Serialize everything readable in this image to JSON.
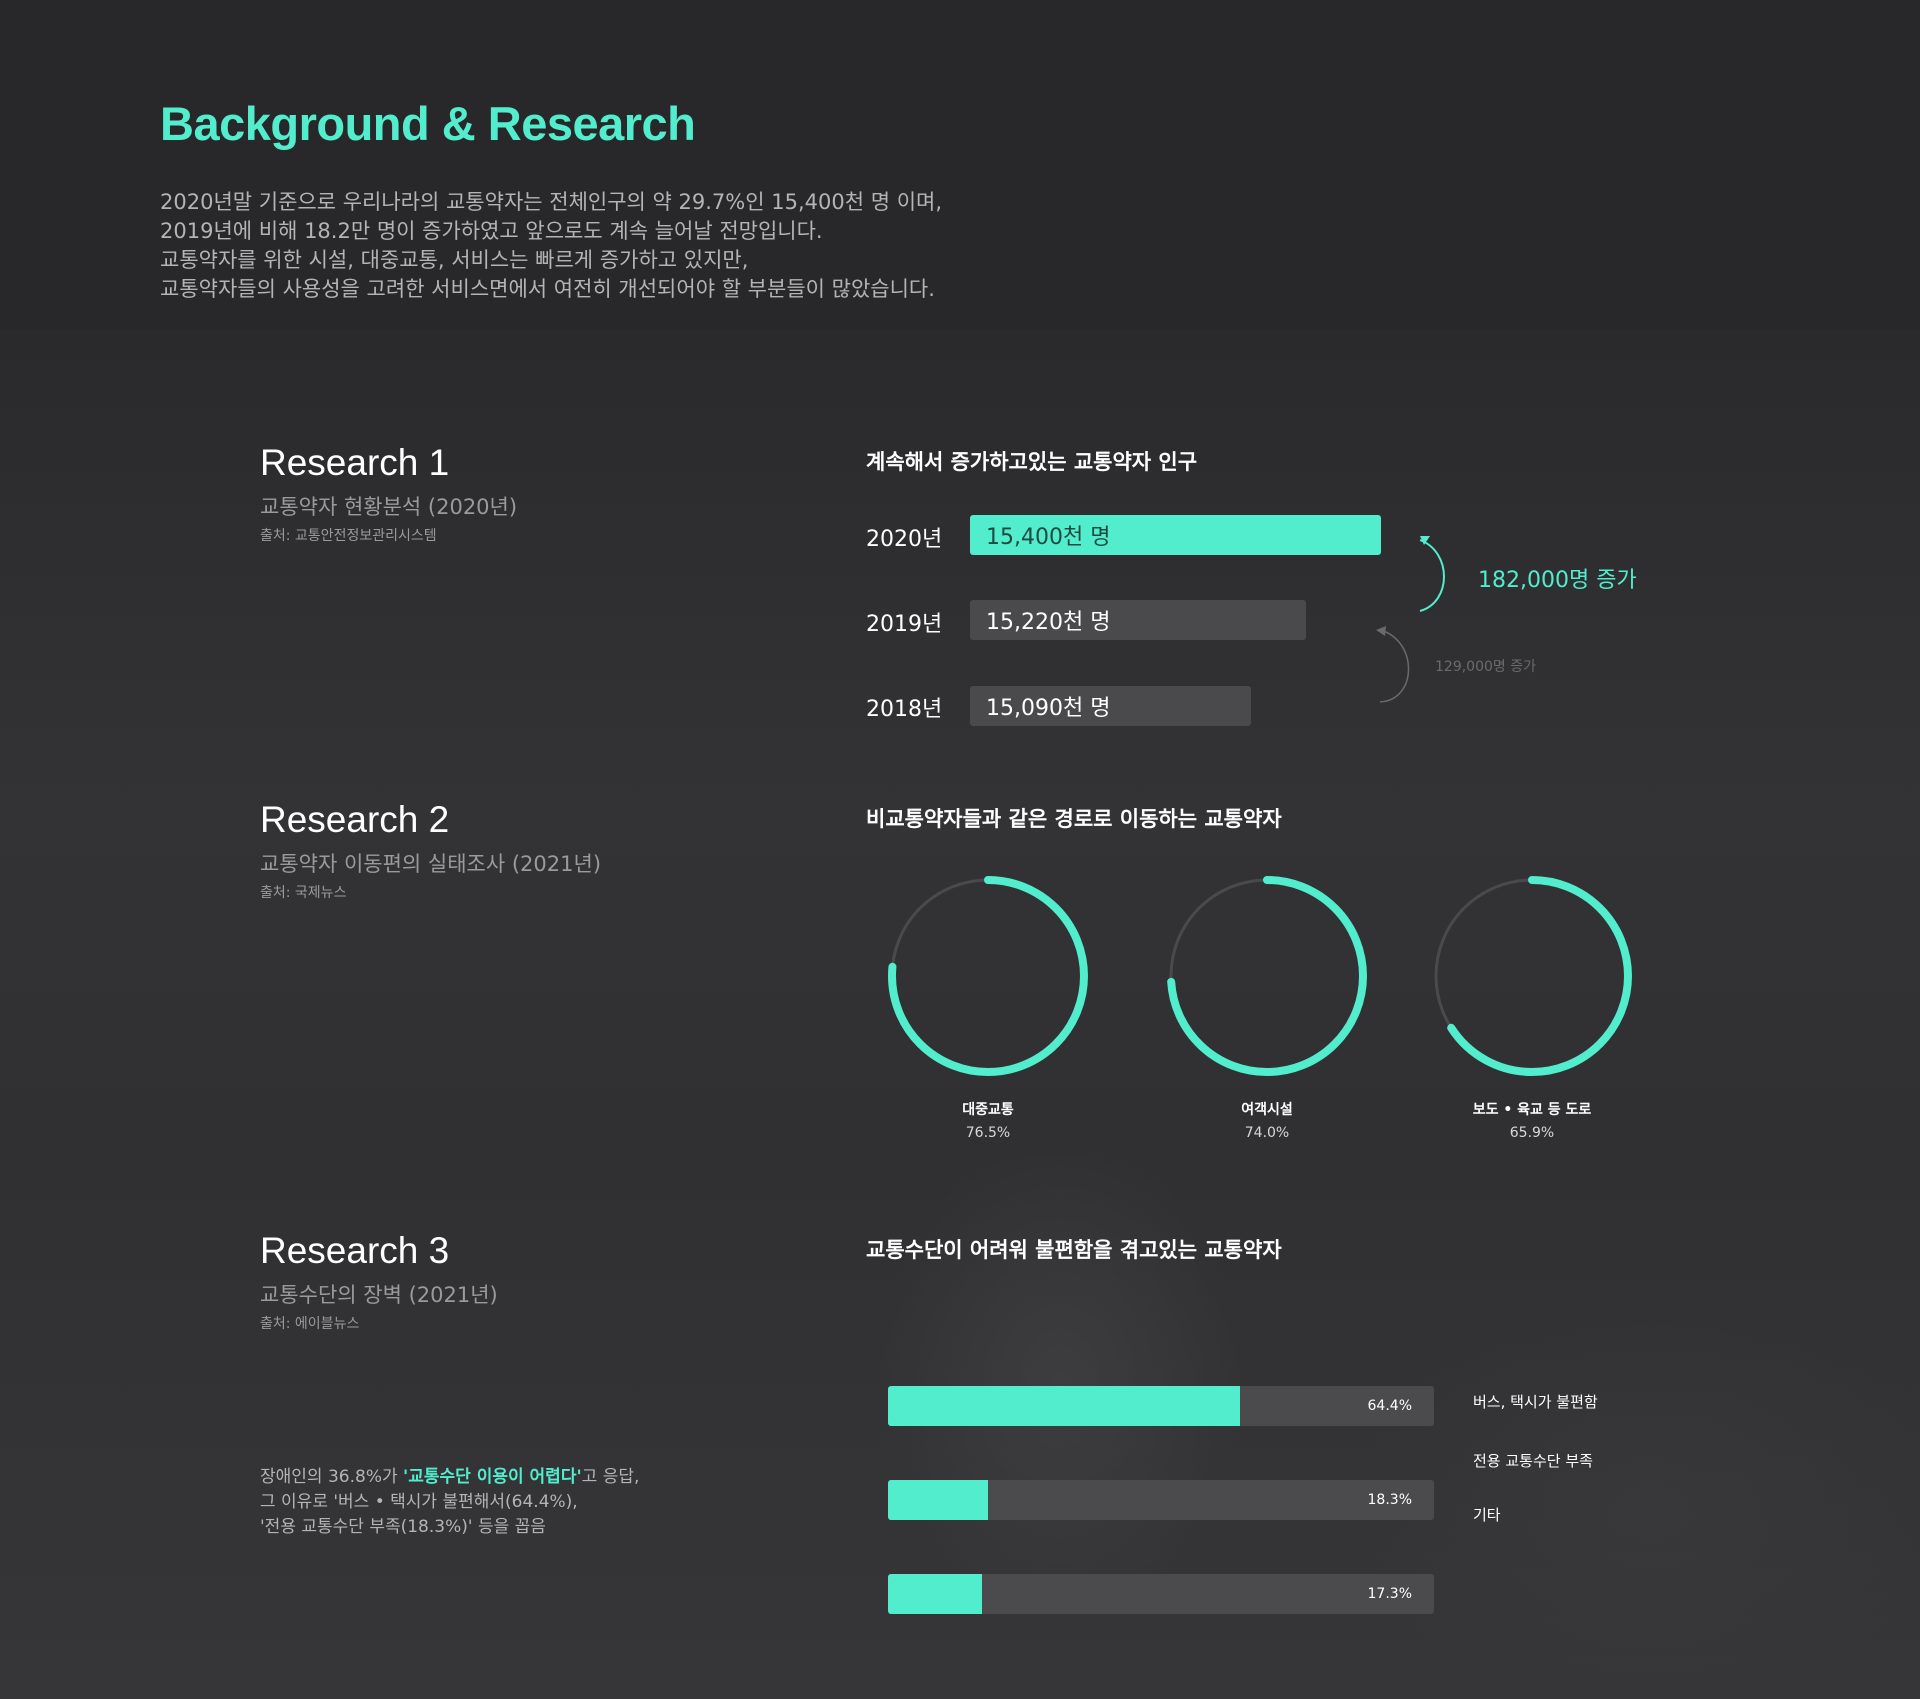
{
  "header": {
    "title": "Background & Research",
    "intro": [
      "2020년말 기준으로 우리나라의 교통약자는 전체인구의 약 29.7%인 15,400천 명 이며,",
      "2019년에 비해 18.2만 명이 증가하였고 앞으로도 계속 늘어날 전망입니다.",
      "교통약자를 위한 시설, 대중교통, 서비스는 빠르게 증가하고 있지만,",
      "교통약자들의 사용성을 고려한 서비스면에서 여전히 개선되어야 할 부분들이 많았습니다."
    ]
  },
  "research1": {
    "title": "Research 1",
    "subtitle": "교통약자 현황분석 (2020년)",
    "source": "출처: 교통안전정보관리시스템"
  },
  "research2": {
    "title": "Research 2",
    "subtitle": "교통약자 이동편의 실태조사 (2021년)",
    "source": "출처: 국제뉴스"
  },
  "research3": {
    "title": "Research 3",
    "subtitle": "교통수단의 장벽 (2021년)",
    "source": "출처: 에이블뉴스",
    "note_prefix": "장애인의 36.8%가 ",
    "note_highlight": "'교통수단 이용이 어렵다'",
    "note_suffix": "고 응답,",
    "note_line2": "그 이유로 '버스 • 택시가 불편해서(64.4%),",
    "note_line3": "'전용 교통수단 부족(18.3%)' 등을 꼽음"
  },
  "chart_data": [
    {
      "type": "bar",
      "orientation": "horizontal",
      "title": "계속해서 증가하고있는 교통약자 인구",
      "unit": "천 명",
      "categories": [
        "2020년",
        "2019년",
        "2018년"
      ],
      "values": [
        15400,
        15220,
        15090
      ],
      "value_labels": [
        "15,400천 명",
        "15,220천 명",
        "15,090천 명"
      ],
      "highlight_color": "#52edcd",
      "base_color": "#4a4a4c",
      "annotations": [
        {
          "from": "2019년",
          "to": "2020년",
          "text": "182,000명 증가"
        },
        {
          "from": "2018년",
          "to": "2019년",
          "text": "129,000명 증가"
        }
      ]
    },
    {
      "type": "pie",
      "style": "donut",
      "title": "비교통약자들과 같은 경로로 이동하는 교통약자",
      "categories": [
        "대중교통",
        "여객시설",
        "보도 • 육교 등 도로"
      ],
      "values": [
        76.5,
        74.0,
        65.9
      ],
      "value_labels": [
        "76.5%",
        "74.0%",
        "65.9%"
      ],
      "fill_color": "#52edcd",
      "track_color": "#4a4a4c"
    },
    {
      "type": "bar",
      "orientation": "horizontal",
      "title": "교통수단이 어려워 불편함을 겪고있는 교통약자",
      "categories": [
        "버스, 택시가 불편함",
        "전용 교통수단 부족",
        "기타"
      ],
      "values": [
        64.4,
        18.3,
        17.3
      ],
      "value_labels": [
        "64.4%",
        "18.3%",
        "17.3%"
      ],
      "fill_color": "#52edcd",
      "track_color": "#4b4b4d"
    }
  ]
}
